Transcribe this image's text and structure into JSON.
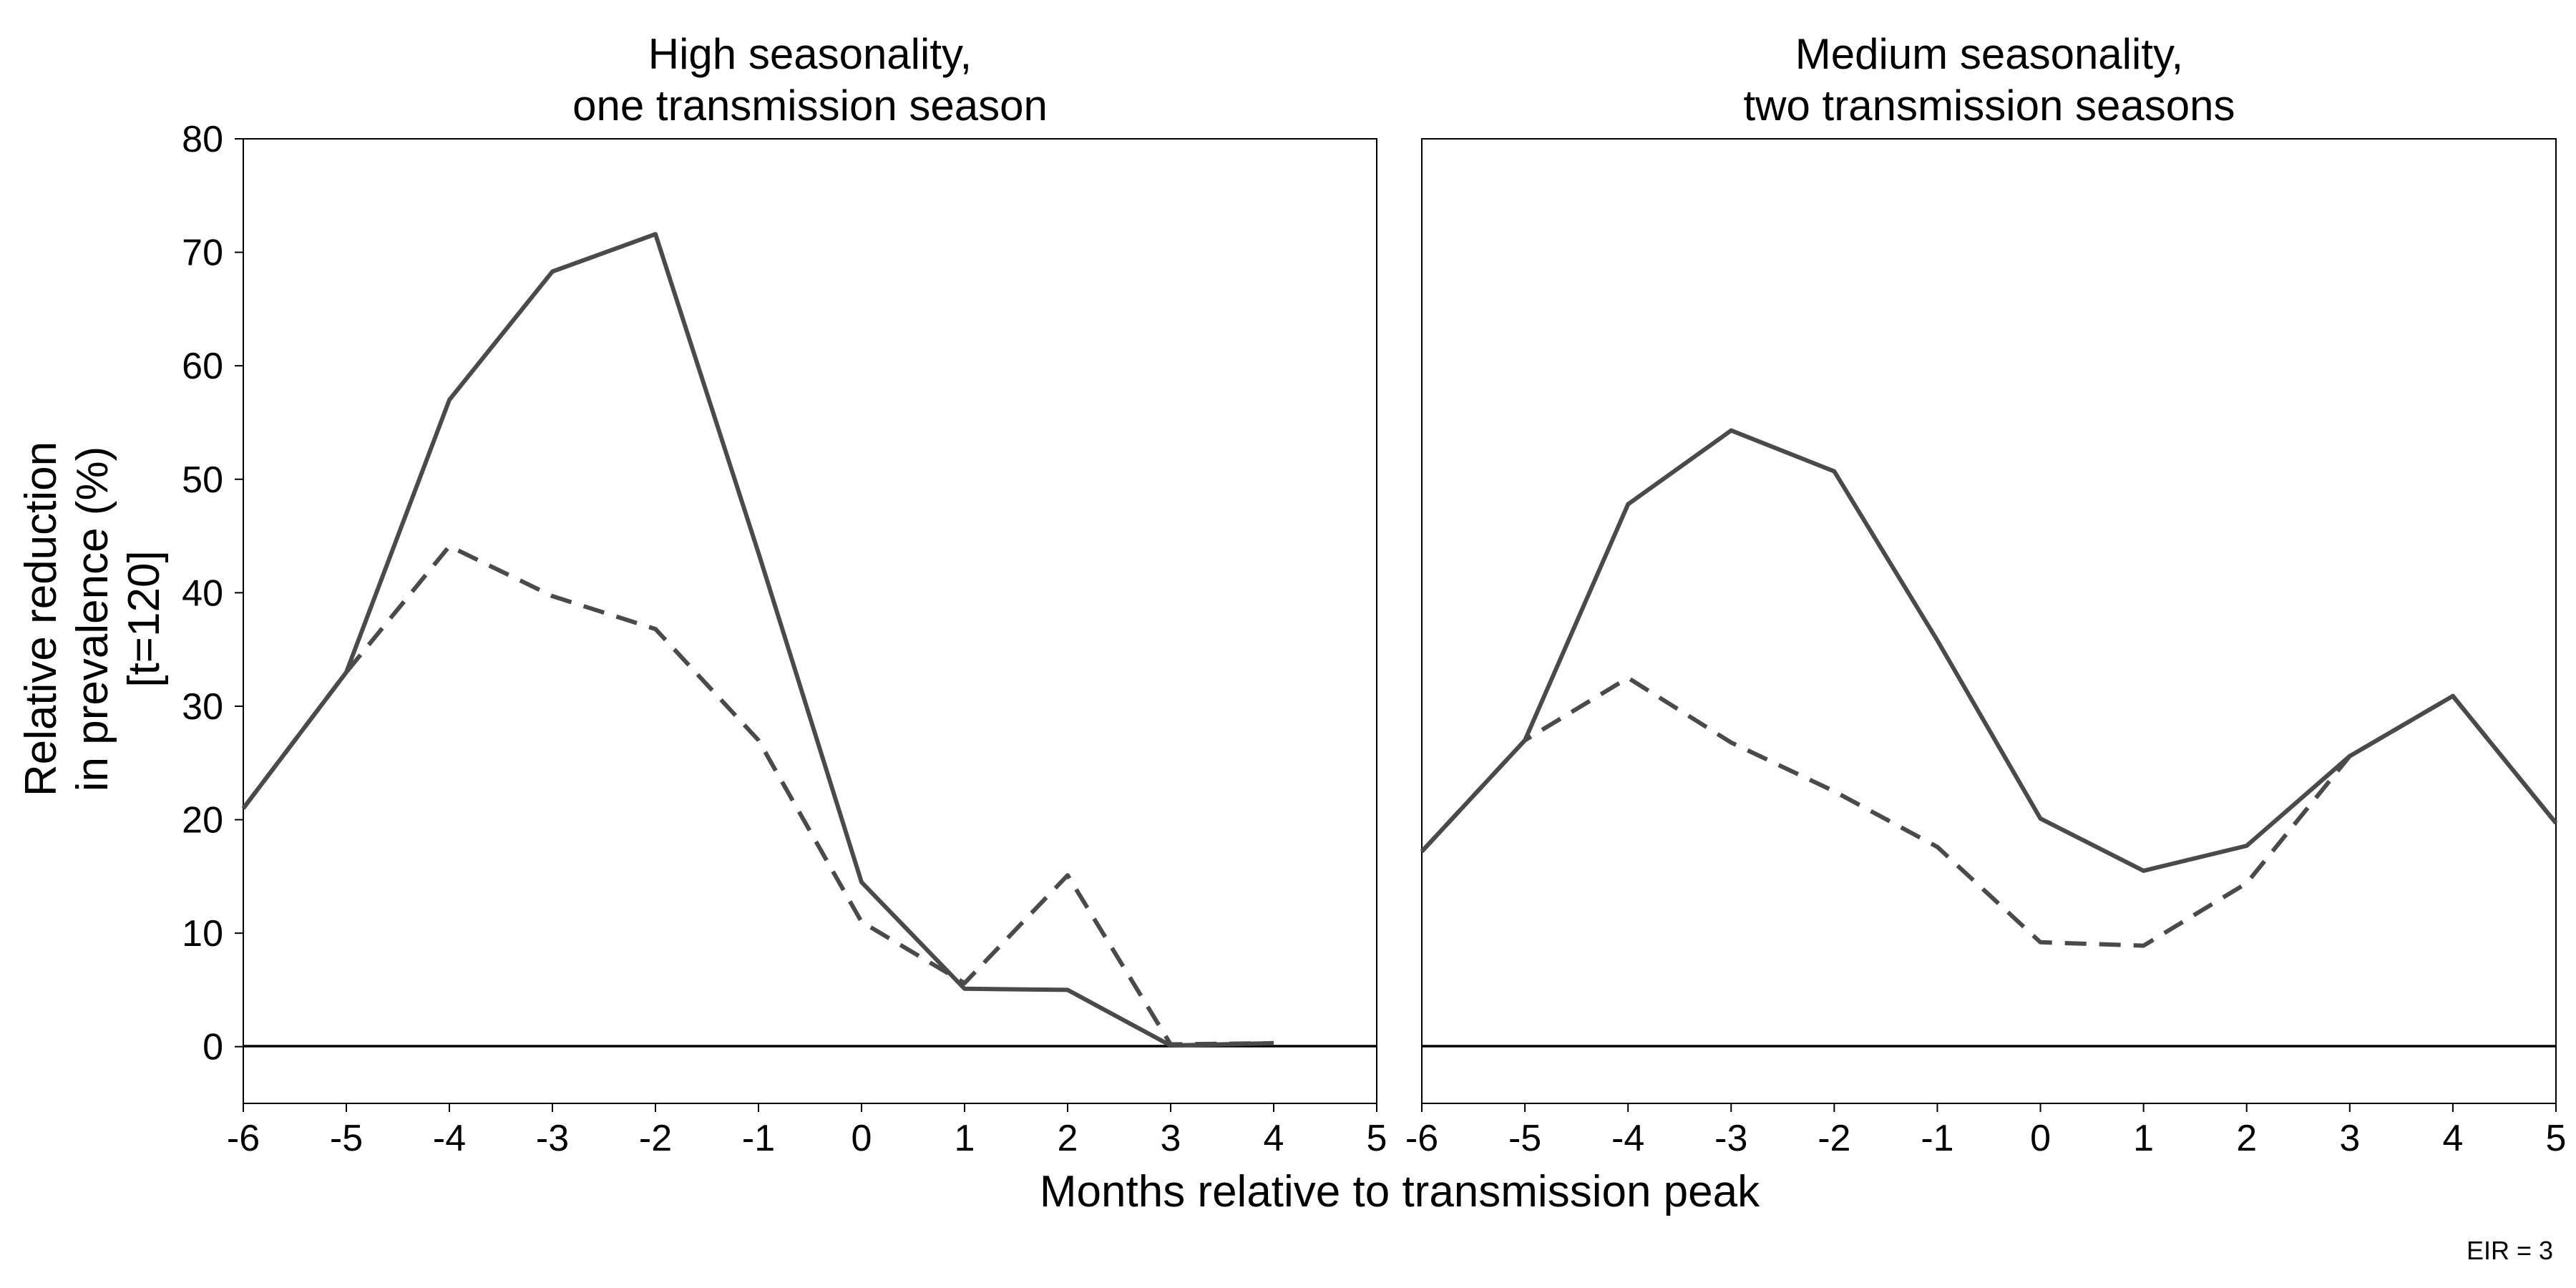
{
  "figure": {
    "xlabel": "Months relative to transmission peak",
    "ylabel_lines": [
      "Relative reduction",
      "in prevalence (%)",
      "[t=120]"
    ],
    "footnote": "EIR = 3"
  },
  "chart_data": [
    {
      "type": "line",
      "title_lines": [
        "High seasonality,",
        "one transmission season"
      ],
      "xlim": [
        -6,
        5
      ],
      "ylim": [
        -5,
        80
      ],
      "xticks": [
        -6,
        -5,
        -4,
        -3,
        -2,
        -1,
        0,
        1,
        2,
        3,
        4,
        5
      ],
      "yticks": [
        0,
        10,
        20,
        30,
        40,
        50,
        60,
        70,
        80
      ],
      "hline": 0,
      "series": [
        {
          "style": "solid",
          "x": [
            -6,
            -5,
            -4,
            -3,
            -2,
            -1,
            0,
            1,
            2,
            3,
            4
          ],
          "y": [
            21,
            33,
            57,
            68.3,
            71.6,
            43.5,
            14.5,
            5.1,
            5.0,
            0.1,
            0.3
          ]
        },
        {
          "style": "dashed",
          "x": [
            -6,
            -5,
            -4,
            -3,
            -2,
            -1,
            0,
            1,
            2,
            3,
            4
          ],
          "y": [
            21,
            33,
            44.1,
            39.7,
            36.8,
            27.0,
            11.0,
            5.6,
            15.1,
            0.2,
            0.3
          ]
        }
      ]
    },
    {
      "type": "line",
      "title_lines": [
        "Medium seasonality,",
        "two transmission seasons"
      ],
      "xlim": [
        -6,
        5
      ],
      "ylim": [
        -5,
        80
      ],
      "xticks": [
        -6,
        -5,
        -4,
        -3,
        -2,
        -1,
        0,
        1,
        2,
        3,
        4,
        5
      ],
      "yticks": [
        0,
        10,
        20,
        30,
        40,
        50,
        60,
        70,
        80
      ],
      "hline": 0,
      "series": [
        {
          "style": "solid",
          "x": [
            -6,
            -5,
            -4,
            -3,
            -2,
            -1,
            0,
            1,
            2,
            3,
            4,
            5
          ],
          "y": [
            17.2,
            27,
            47.8,
            54.3,
            50.7,
            35.8,
            20.1,
            15.5,
            17.7,
            25.6,
            30.9,
            19.7
          ]
        },
        {
          "style": "dashed",
          "x": [
            -6,
            -5,
            -4,
            -3,
            -2,
            -1,
            0,
            1,
            2,
            3,
            4,
            5
          ],
          "y": [
            17.2,
            27,
            32.5,
            26.8,
            22.5,
            17.6,
            9.2,
            8.9,
            14.4,
            25.6,
            30.9,
            19.7
          ]
        }
      ]
    }
  ]
}
